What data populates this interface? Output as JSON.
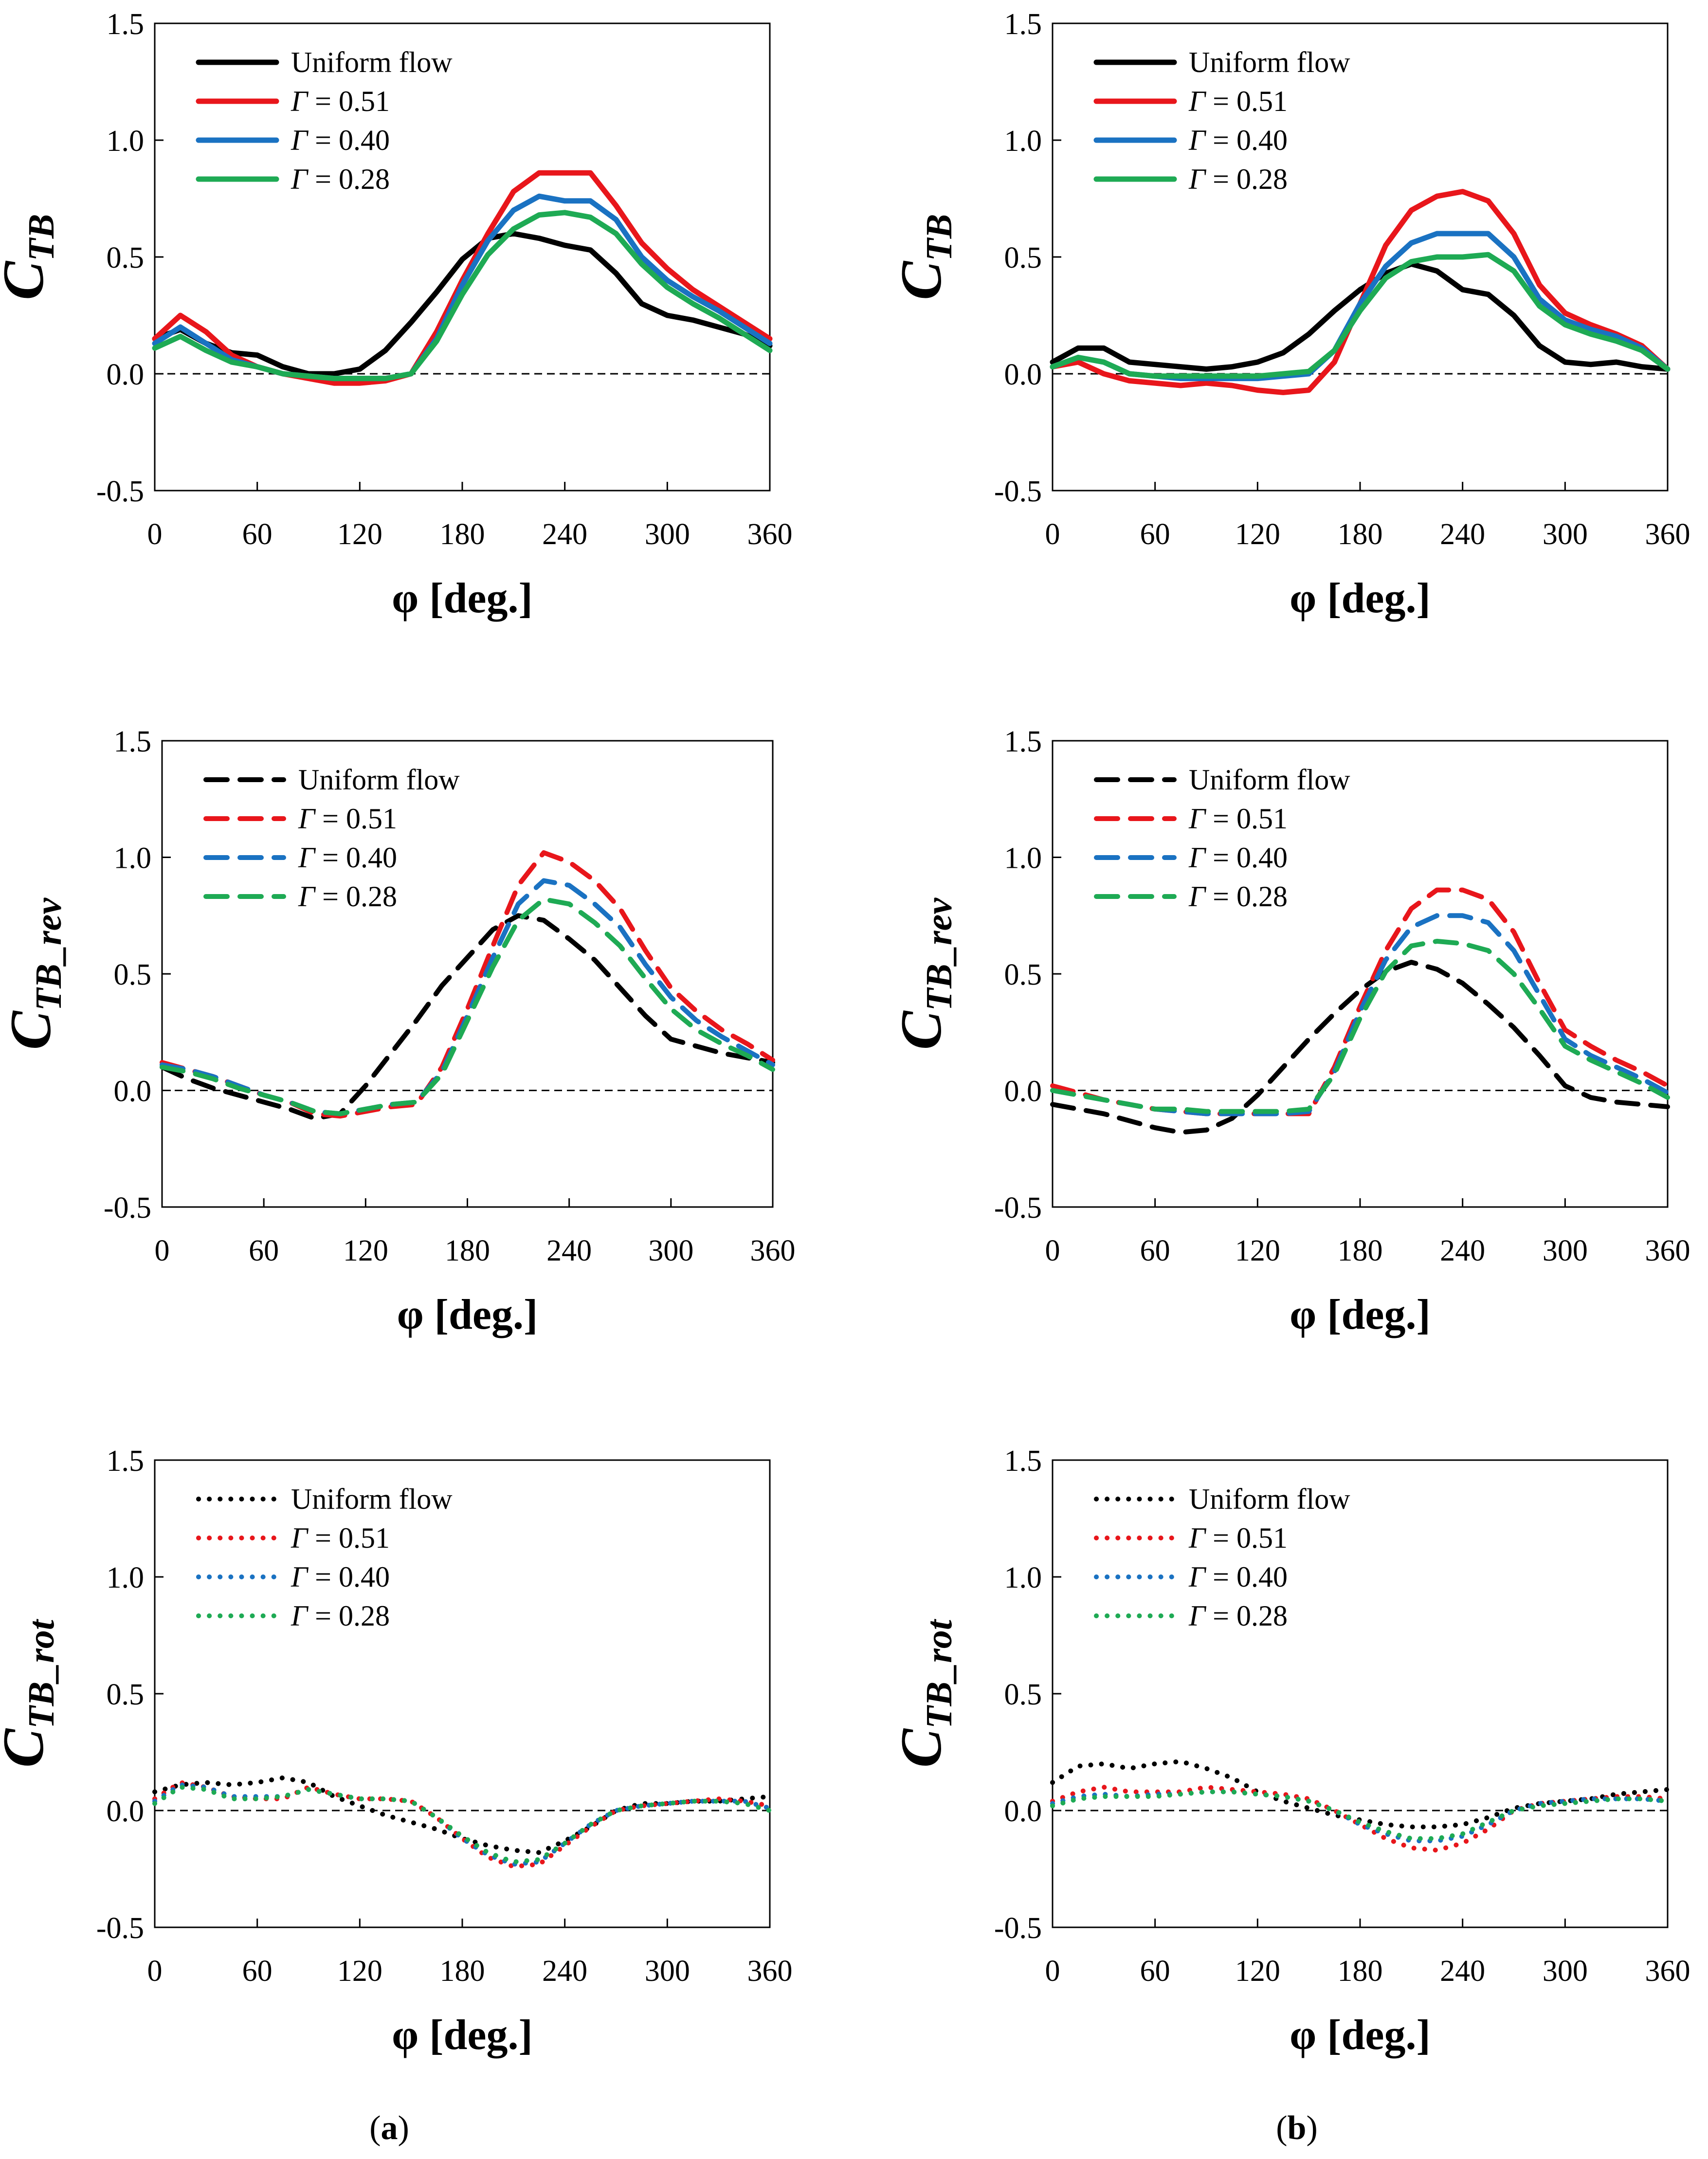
{
  "figure": {
    "captions": {
      "a": "a",
      "b": "b"
    },
    "series_colors": {
      "uniform": "#000000",
      "g051": "#e8161b",
      "g040": "#1a72c2",
      "g028": "#1eaa54"
    }
  },
  "chart_data": [
    {
      "id": "a-tb",
      "type": "line",
      "column": "a",
      "title": "",
      "xlabel": "φ [deg.]",
      "ylabel": "C",
      "ylabel_sub": "TB",
      "line_style": "solid",
      "xlim": [
        0,
        360
      ],
      "ylim": [
        -0.5,
        1.5
      ],
      "xticks": [
        "0",
        "60",
        "120",
        "180",
        "240",
        "300",
        "360"
      ],
      "yticks": [
        "-0.5",
        "0.0",
        "0.5",
        "1.0",
        "1.5"
      ],
      "legend_position": "top-left",
      "x": [
        0,
        15,
        30,
        45,
        60,
        75,
        90,
        105,
        120,
        135,
        150,
        165,
        180,
        195,
        210,
        225,
        240,
        255,
        270,
        285,
        300,
        315,
        330,
        345,
        360
      ],
      "series": [
        {
          "key": "uniform",
          "name": "Uniform flow",
          "values": [
            0.15,
            0.19,
            0.13,
            0.09,
            0.08,
            0.03,
            0.0,
            0.0,
            0.02,
            0.1,
            0.22,
            0.35,
            0.49,
            0.58,
            0.6,
            0.58,
            0.55,
            0.53,
            0.43,
            0.3,
            0.25,
            0.23,
            0.2,
            0.17,
            0.12
          ]
        },
        {
          "key": "g051",
          "name": "Γ = 0.51",
          "values": [
            0.15,
            0.25,
            0.18,
            0.08,
            0.03,
            0.0,
            -0.02,
            -0.04,
            -0.04,
            -0.03,
            0.0,
            0.18,
            0.4,
            0.6,
            0.78,
            0.86,
            0.86,
            0.86,
            0.72,
            0.56,
            0.45,
            0.36,
            0.29,
            0.22,
            0.15
          ]
        },
        {
          "key": "g040",
          "name": "Γ = 0.40",
          "values": [
            0.13,
            0.2,
            0.13,
            0.06,
            0.03,
            0.0,
            -0.01,
            -0.02,
            -0.02,
            -0.02,
            0.0,
            0.15,
            0.38,
            0.57,
            0.7,
            0.76,
            0.74,
            0.74,
            0.66,
            0.5,
            0.4,
            0.33,
            0.27,
            0.2,
            0.13
          ]
        },
        {
          "key": "g028",
          "name": "Γ = 0.28",
          "values": [
            0.11,
            0.16,
            0.1,
            0.05,
            0.03,
            0.0,
            -0.01,
            -0.02,
            -0.02,
            -0.02,
            0.0,
            0.14,
            0.34,
            0.51,
            0.62,
            0.68,
            0.69,
            0.67,
            0.6,
            0.47,
            0.37,
            0.3,
            0.24,
            0.17,
            0.1
          ]
        }
      ]
    },
    {
      "id": "b-tb",
      "type": "line",
      "column": "b",
      "title": "",
      "xlabel": "φ [deg.]",
      "ylabel": "C",
      "ylabel_sub": "TB",
      "line_style": "solid",
      "xlim": [
        0,
        360
      ],
      "ylim": [
        -0.5,
        1.5
      ],
      "xticks": [
        "0",
        "60",
        "120",
        "180",
        "240",
        "300",
        "360"
      ],
      "yticks": [
        "-0.5",
        "0.0",
        "0.5",
        "1.0",
        "1.5"
      ],
      "legend_position": "top-left",
      "x": [
        0,
        15,
        30,
        45,
        60,
        75,
        90,
        105,
        120,
        135,
        150,
        165,
        180,
        195,
        210,
        225,
        240,
        255,
        270,
        285,
        300,
        315,
        330,
        345,
        360
      ],
      "series": [
        {
          "key": "uniform",
          "name": "Uniform flow",
          "values": [
            0.05,
            0.11,
            0.11,
            0.05,
            0.04,
            0.03,
            0.02,
            0.03,
            0.05,
            0.09,
            0.17,
            0.27,
            0.36,
            0.43,
            0.47,
            0.44,
            0.36,
            0.34,
            0.25,
            0.12,
            0.05,
            0.04,
            0.05,
            0.03,
            0.02
          ]
        },
        {
          "key": "g051",
          "name": "Γ = 0.51",
          "values": [
            0.03,
            0.05,
            0.0,
            -0.03,
            -0.04,
            -0.05,
            -0.04,
            -0.05,
            -0.07,
            -0.08,
            -0.07,
            0.05,
            0.3,
            0.55,
            0.7,
            0.76,
            0.78,
            0.74,
            0.6,
            0.38,
            0.26,
            0.21,
            0.17,
            0.12,
            0.02
          ]
        },
        {
          "key": "g040",
          "name": "Γ = 0.40",
          "values": [
            0.03,
            0.07,
            0.05,
            0.0,
            -0.01,
            -0.02,
            -0.02,
            -0.02,
            -0.02,
            -0.01,
            0.0,
            0.1,
            0.3,
            0.46,
            0.56,
            0.6,
            0.6,
            0.6,
            0.5,
            0.32,
            0.23,
            0.19,
            0.16,
            0.11,
            0.02
          ]
        },
        {
          "key": "g028",
          "name": "Γ = 0.28",
          "values": [
            0.03,
            0.07,
            0.05,
            0.0,
            -0.01,
            -0.01,
            -0.01,
            -0.01,
            -0.01,
            0.0,
            0.01,
            0.1,
            0.27,
            0.41,
            0.48,
            0.5,
            0.5,
            0.51,
            0.44,
            0.29,
            0.21,
            0.17,
            0.14,
            0.1,
            0.02
          ]
        }
      ]
    },
    {
      "id": "a-rev",
      "type": "line",
      "column": "a",
      "title": "",
      "xlabel": "φ [deg.]",
      "ylabel": "C",
      "ylabel_sub": "TB_rev",
      "line_style": "dashed",
      "xlim": [
        0,
        360
      ],
      "ylim": [
        -0.5,
        1.5
      ],
      "xticks": [
        "0",
        "60",
        "120",
        "180",
        "240",
        "300",
        "360"
      ],
      "yticks": [
        "-0.5",
        "0.0",
        "0.5",
        "1.0",
        "1.5"
      ],
      "legend_position": "top-left",
      "x": [
        0,
        15,
        30,
        45,
        60,
        75,
        90,
        105,
        120,
        135,
        150,
        165,
        180,
        195,
        210,
        225,
        240,
        255,
        270,
        285,
        300,
        315,
        330,
        345,
        360
      ],
      "series": [
        {
          "key": "uniform",
          "name": "Uniform flow",
          "values": [
            0.1,
            0.05,
            0.01,
            -0.02,
            -0.05,
            -0.08,
            -0.12,
            -0.1,
            0.02,
            0.16,
            0.3,
            0.45,
            0.57,
            0.69,
            0.75,
            0.73,
            0.65,
            0.56,
            0.44,
            0.32,
            0.22,
            0.19,
            0.16,
            0.14,
            0.12
          ]
        },
        {
          "key": "g051",
          "name": "Γ = 0.51",
          "values": [
            0.12,
            0.09,
            0.06,
            0.02,
            -0.02,
            -0.05,
            -0.1,
            -0.11,
            -0.09,
            -0.07,
            -0.06,
            0.1,
            0.35,
            0.62,
            0.88,
            1.02,
            0.98,
            0.9,
            0.78,
            0.6,
            0.44,
            0.34,
            0.26,
            0.2,
            0.13
          ]
        },
        {
          "key": "g040",
          "name": "Γ = 0.40",
          "values": [
            0.11,
            0.09,
            0.06,
            0.02,
            -0.02,
            -0.05,
            -0.09,
            -0.1,
            -0.08,
            -0.06,
            -0.05,
            0.08,
            0.32,
            0.57,
            0.8,
            0.9,
            0.88,
            0.8,
            0.7,
            0.54,
            0.4,
            0.3,
            0.23,
            0.17,
            0.11
          ]
        },
        {
          "key": "g028",
          "name": "Γ = 0.28",
          "values": [
            0.1,
            0.08,
            0.05,
            0.01,
            -0.02,
            -0.05,
            -0.09,
            -0.1,
            -0.08,
            -0.06,
            -0.05,
            0.07,
            0.3,
            0.53,
            0.73,
            0.82,
            0.8,
            0.72,
            0.62,
            0.48,
            0.35,
            0.26,
            0.2,
            0.15,
            0.09
          ]
        }
      ]
    },
    {
      "id": "b-rev",
      "type": "line",
      "column": "b",
      "title": "",
      "xlabel": "φ [deg.]",
      "ylabel": "C",
      "ylabel_sub": "TB_rev",
      "line_style": "dashed",
      "xlim": [
        0,
        360
      ],
      "ylim": [
        -0.5,
        1.5
      ],
      "xticks": [
        "0",
        "60",
        "120",
        "180",
        "240",
        "300",
        "360"
      ],
      "yticks": [
        "-0.5",
        "0.0",
        "0.5",
        "1.0",
        "1.5"
      ],
      "legend_position": "top-left",
      "x": [
        0,
        15,
        30,
        45,
        60,
        75,
        90,
        105,
        120,
        135,
        150,
        165,
        180,
        195,
        210,
        225,
        240,
        255,
        270,
        285,
        300,
        315,
        330,
        345,
        360
      ],
      "series": [
        {
          "key": "uniform",
          "name": "Uniform flow",
          "values": [
            -0.06,
            -0.08,
            -0.1,
            -0.13,
            -0.16,
            -0.18,
            -0.17,
            -0.12,
            -0.02,
            0.1,
            0.22,
            0.33,
            0.43,
            0.51,
            0.55,
            0.52,
            0.46,
            0.37,
            0.27,
            0.15,
            0.02,
            -0.03,
            -0.05,
            -0.06,
            -0.07
          ]
        },
        {
          "key": "g051",
          "name": "Γ = 0.51",
          "values": [
            0.02,
            -0.01,
            -0.04,
            -0.06,
            -0.08,
            -0.09,
            -0.1,
            -0.1,
            -0.1,
            -0.1,
            -0.1,
            0.1,
            0.36,
            0.6,
            0.78,
            0.86,
            0.86,
            0.82,
            0.68,
            0.46,
            0.26,
            0.19,
            0.13,
            0.08,
            0.02
          ]
        },
        {
          "key": "g040",
          "name": "Γ = 0.40",
          "values": [
            0.0,
            -0.02,
            -0.04,
            -0.06,
            -0.08,
            -0.09,
            -0.1,
            -0.1,
            -0.1,
            -0.1,
            -0.09,
            0.08,
            0.34,
            0.56,
            0.7,
            0.75,
            0.75,
            0.72,
            0.6,
            0.41,
            0.22,
            0.15,
            0.1,
            0.05,
            -0.01
          ]
        },
        {
          "key": "g028",
          "name": "Γ = 0.28",
          "values": [
            0.0,
            -0.02,
            -0.04,
            -0.06,
            -0.08,
            -0.08,
            -0.09,
            -0.09,
            -0.09,
            -0.09,
            -0.08,
            0.07,
            0.31,
            0.51,
            0.62,
            0.64,
            0.63,
            0.6,
            0.5,
            0.35,
            0.19,
            0.13,
            0.08,
            0.03,
            -0.03
          ]
        }
      ]
    },
    {
      "id": "a-rot",
      "type": "line",
      "column": "a",
      "title": "",
      "xlabel": "φ [deg.]",
      "ylabel": "C",
      "ylabel_sub": "TB_rot",
      "line_style": "dotted",
      "xlim": [
        0,
        360
      ],
      "ylim": [
        -0.5,
        1.5
      ],
      "xticks": [
        "0",
        "60",
        "120",
        "180",
        "240",
        "300",
        "360"
      ],
      "yticks": [
        "-0.5",
        "0.0",
        "0.5",
        "1.0",
        "1.5"
      ],
      "legend_position": "top-left",
      "x": [
        0,
        15,
        30,
        45,
        60,
        75,
        90,
        105,
        120,
        135,
        150,
        165,
        180,
        195,
        210,
        225,
        240,
        255,
        270,
        285,
        300,
        315,
        330,
        345,
        360
      ],
      "series": [
        {
          "key": "uniform",
          "name": "Uniform flow",
          "values": [
            0.08,
            0.11,
            0.12,
            0.11,
            0.12,
            0.14,
            0.12,
            0.06,
            0.02,
            -0.02,
            -0.05,
            -0.08,
            -0.12,
            -0.15,
            -0.17,
            -0.18,
            -0.13,
            -0.07,
            0.0,
            0.03,
            0.03,
            0.04,
            0.04,
            0.05,
            0.06
          ]
        },
        {
          "key": "g051",
          "name": "Γ = 0.51",
          "values": [
            0.05,
            0.12,
            0.1,
            0.06,
            0.05,
            0.05,
            0.1,
            0.07,
            0.05,
            0.05,
            0.04,
            -0.03,
            -0.12,
            -0.2,
            -0.24,
            -0.23,
            -0.15,
            -0.07,
            0.0,
            0.02,
            0.03,
            0.04,
            0.05,
            0.04,
            0.02
          ]
        },
        {
          "key": "g040",
          "name": "Γ = 0.40",
          "values": [
            0.04,
            0.11,
            0.1,
            0.06,
            0.06,
            0.06,
            0.09,
            0.07,
            0.05,
            0.05,
            0.04,
            -0.03,
            -0.12,
            -0.19,
            -0.23,
            -0.22,
            -0.14,
            -0.06,
            0.0,
            0.02,
            0.03,
            0.04,
            0.04,
            0.04,
            0.01
          ]
        },
        {
          "key": "g028",
          "name": "Γ = 0.28",
          "values": [
            0.03,
            0.1,
            0.09,
            0.05,
            0.05,
            0.06,
            0.09,
            0.07,
            0.05,
            0.05,
            0.04,
            -0.03,
            -0.11,
            -0.18,
            -0.22,
            -0.21,
            -0.14,
            -0.06,
            0.0,
            0.02,
            0.03,
            0.04,
            0.04,
            0.03,
            0.0
          ]
        }
      ]
    },
    {
      "id": "b-rot",
      "type": "line",
      "column": "b",
      "title": "",
      "xlabel": "φ [deg.]",
      "ylabel": "C",
      "ylabel_sub": "TB_rot",
      "line_style": "dotted",
      "xlim": [
        0,
        360
      ],
      "ylim": [
        -0.5,
        1.5
      ],
      "xticks": [
        "0",
        "60",
        "120",
        "180",
        "240",
        "300",
        "360"
      ],
      "yticks": [
        "-0.5",
        "0.0",
        "0.5",
        "1.0",
        "1.5"
      ],
      "legend_position": "top-left",
      "x": [
        0,
        15,
        30,
        45,
        60,
        75,
        90,
        105,
        120,
        135,
        150,
        165,
        180,
        195,
        210,
        225,
        240,
        255,
        270,
        285,
        300,
        315,
        330,
        345,
        360
      ],
      "series": [
        {
          "key": "uniform",
          "name": "Uniform flow",
          "values": [
            0.12,
            0.19,
            0.2,
            0.18,
            0.2,
            0.21,
            0.18,
            0.14,
            0.08,
            0.04,
            0.01,
            -0.02,
            -0.04,
            -0.06,
            -0.07,
            -0.07,
            -0.06,
            -0.03,
            0.01,
            0.03,
            0.04,
            0.05,
            0.07,
            0.08,
            0.09
          ]
        },
        {
          "key": "g051",
          "name": "Γ = 0.51",
          "values": [
            0.04,
            0.08,
            0.1,
            0.08,
            0.08,
            0.08,
            0.1,
            0.09,
            0.08,
            0.07,
            0.05,
            0.0,
            -0.06,
            -0.12,
            -0.16,
            -0.17,
            -0.14,
            -0.08,
            0.0,
            0.03,
            0.04,
            0.05,
            0.06,
            0.06,
            0.05
          ]
        },
        {
          "key": "g040",
          "name": "Γ = 0.40",
          "values": [
            0.03,
            0.06,
            0.07,
            0.06,
            0.07,
            0.07,
            0.08,
            0.08,
            0.07,
            0.06,
            0.04,
            0.0,
            -0.06,
            -0.1,
            -0.13,
            -0.13,
            -0.11,
            -0.06,
            0.0,
            0.03,
            0.04,
            0.05,
            0.05,
            0.05,
            0.04
          ]
        },
        {
          "key": "g028",
          "name": "Γ = 0.28",
          "values": [
            0.02,
            0.05,
            0.06,
            0.06,
            0.06,
            0.07,
            0.08,
            0.08,
            0.07,
            0.06,
            0.04,
            0.0,
            -0.05,
            -0.09,
            -0.12,
            -0.12,
            -0.1,
            -0.05,
            0.0,
            0.02,
            0.03,
            0.04,
            0.05,
            0.05,
            0.04
          ]
        }
      ]
    }
  ]
}
